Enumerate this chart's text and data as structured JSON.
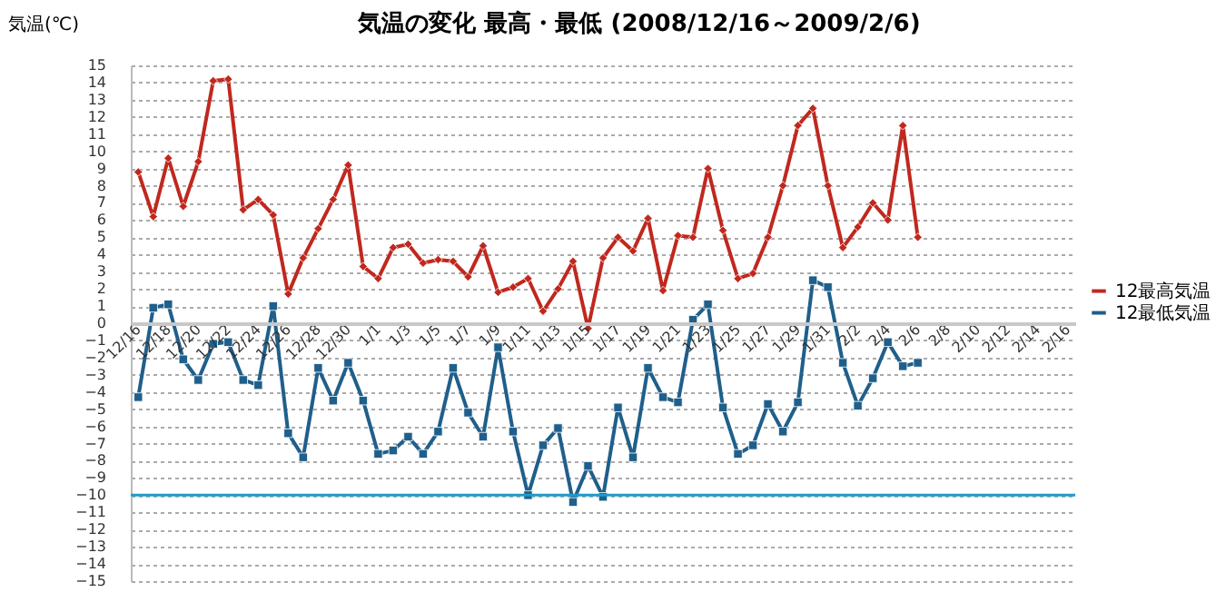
{
  "chart_data": {
    "type": "line",
    "title": "気温の変化  最高・最低  (2008/12/16～2009/2/6)",
    "ylabel": "気温(℃)",
    "categories": [
      "12/16",
      null,
      "12/18",
      null,
      "12/20",
      null,
      "12/22",
      null,
      "12/24",
      null,
      "12/26",
      null,
      "12/28",
      null,
      "12/30",
      null,
      "1/1",
      null,
      "1/3",
      null,
      "1/5",
      null,
      "1/7",
      null,
      "1/9",
      null,
      "1/11",
      null,
      "1/13",
      null,
      "1/15",
      null,
      "1/17",
      null,
      "1/19",
      null,
      "1/21",
      null,
      "1/23",
      null,
      "1/25",
      null,
      "1/27",
      null,
      "1/29",
      null,
      "1/31",
      null,
      "2/2",
      null,
      "2/4",
      null,
      "2/6",
      null,
      "2/8",
      null,
      "2/10",
      null,
      "2/12",
      null,
      "2/14",
      null,
      "2/16"
    ],
    "series": [
      {
        "name": "12最高気温",
        "color": "#c0281e",
        "marker": "diamond",
        "values": [
          8.8,
          6.2,
          9.6,
          6.8,
          9.4,
          14.1,
          14.2,
          6.6,
          7.2,
          6.3,
          1.7,
          3.8,
          5.5,
          7.2,
          9.2,
          3.3,
          2.6,
          4.4,
          4.6,
          3.5,
          3.7,
          3.6,
          2.7,
          4.5,
          1.8,
          2.1,
          2.6,
          0.7,
          2.0,
          3.6,
          -0.3,
          3.8,
          5.0,
          4.2,
          6.1,
          1.9,
          5.1,
          5.0,
          9.0,
          5.4,
          2.6,
          2.9,
          5.0,
          8.0,
          11.5,
          12.5,
          8.0,
          4.4,
          5.6,
          7.0,
          6.0,
          11.5,
          5.0,
          null,
          null,
          null,
          null,
          null,
          null,
          null,
          null,
          null,
          null
        ]
      },
      {
        "name": "12最低気温",
        "color": "#1f5f8b",
        "marker": "square",
        "values": [
          -4.3,
          0.9,
          1.1,
          -2.1,
          -3.3,
          -1.2,
          -1.1,
          -3.3,
          -3.6,
          1.0,
          -6.4,
          -7.8,
          -2.6,
          -4.5,
          -2.3,
          -4.5,
          -7.6,
          -7.4,
          -6.6,
          -7.6,
          -6.3,
          -2.6,
          -5.2,
          -6.6,
          -1.4,
          -6.3,
          -10.0,
          -7.1,
          -6.1,
          -10.4,
          -8.3,
          -10.1,
          -4.9,
          -7.8,
          -2.6,
          -4.3,
          -4.6,
          0.2,
          1.1,
          -4.9,
          -7.6,
          -7.1,
          -4.7,
          -6.3,
          -4.6,
          2.5,
          2.1,
          -2.3,
          -4.8,
          -3.2,
          -1.1,
          -2.5,
          -2.3,
          null,
          null,
          null,
          null,
          null,
          null,
          null,
          null,
          null,
          null
        ]
      }
    ],
    "ylim": [
      -15,
      15
    ],
    "yticks": [
      -15,
      -14,
      -13,
      -12,
      -11,
      -10,
      -9,
      -8,
      -7,
      -6,
      -5,
      -4,
      -3,
      -2,
      -1,
      0,
      1,
      2,
      3,
      4,
      5,
      6,
      7,
      8,
      9,
      10,
      11,
      12,
      13,
      14,
      15
    ],
    "ref_lines": [
      {
        "axis": "y",
        "value": -10,
        "color": "#1f9bc9"
      }
    ],
    "grid": "y",
    "legend": "right"
  }
}
